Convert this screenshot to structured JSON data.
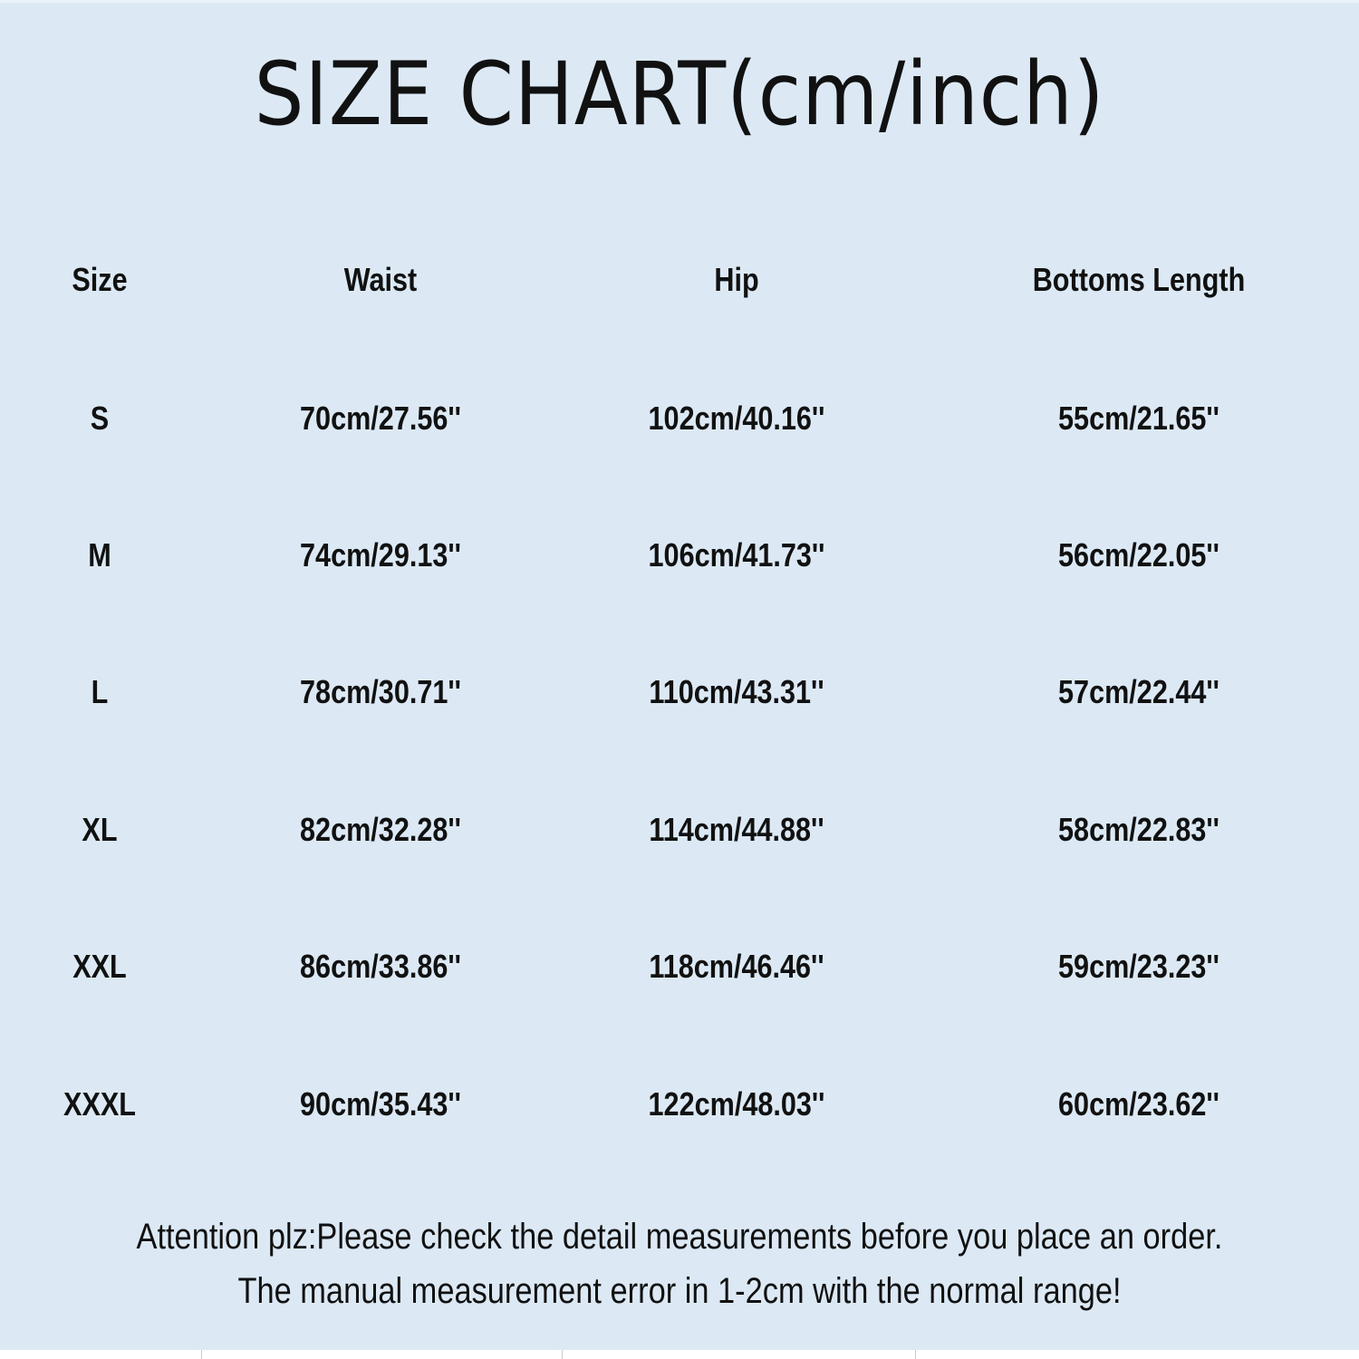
{
  "title": "SIZE CHART(cm/inch)",
  "table": {
    "headers": [
      "Size",
      "Waist",
      "Hip",
      "Bottoms Length"
    ],
    "rows": [
      [
        "S",
        "70cm/27.56''",
        "102cm/40.16''",
        "55cm/21.65''"
      ],
      [
        "M",
        "74cm/29.13''",
        "106cm/41.73''",
        "56cm/22.05''"
      ],
      [
        "L",
        "78cm/30.71''",
        "110cm/43.31''",
        "57cm/22.44''"
      ],
      [
        "XL",
        "82cm/32.28''",
        "114cm/44.88''",
        "58cm/22.83''"
      ],
      [
        "XXL",
        "86cm/33.86''",
        "118cm/46.46''",
        "59cm/23.23''"
      ],
      [
        "XXXL",
        "90cm/35.43''",
        "122cm/48.03''",
        "60cm/23.62''"
      ]
    ]
  },
  "notes": [
    "Attention plz:Please check the detail measurements before you place an order.",
    "The manual measurement error in 1-2cm with the normal range!"
  ],
  "colors": {
    "background": "#dce9f5",
    "text": "#111111"
  }
}
